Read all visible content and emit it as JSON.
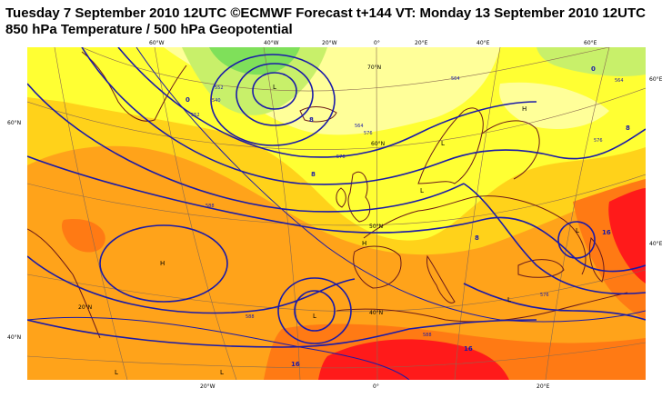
{
  "header": {
    "line1": "Tuesday 7 September 2010 12UTC ©ECMWF Forecast t+144 VT: Monday 13 September 2010 12UTC",
    "line2": "850 hPa Temperature / 500 hPa Geopotential"
  },
  "map": {
    "top_lon_labels": [
      "60°W",
      "40°W",
      "20°W",
      "0°",
      "20°E",
      "40°E",
      "60°E"
    ],
    "bottom_lon_labels": [
      "20°W",
      "0°",
      "20°E"
    ],
    "left_lat_labels": [
      "60°N",
      "40°N"
    ],
    "right_lat_labels": [
      "60°E",
      "40°E"
    ],
    "inner_lat_labels": [
      "70°N",
      "60°N",
      "50°N",
      "40°N",
      "20°N"
    ],
    "pressure_centers": {
      "lows": [
        "L",
        "L",
        "L",
        "L",
        "L",
        "L",
        "L",
        "L"
      ],
      "highs": [
        "H",
        "H",
        "H"
      ]
    },
    "geopotential_labels": [
      "540",
      "552",
      "564",
      "576",
      "588",
      "588",
      "576",
      "564",
      "552",
      "588",
      "576",
      "564",
      "576"
    ],
    "temperature_labels": [
      "0",
      "0",
      "8",
      "8",
      "8",
      "16",
      "16",
      "16",
      "8"
    ],
    "colors": {
      "cold_green": "#7fe05a",
      "pale_green": "#c8f06a",
      "yellow": "#ffff33",
      "light_yellow": "#ffff99",
      "orange_yellow": "#ffd21a",
      "orange": "#ffa31a",
      "dark_orange": "#ff7a14",
      "red": "#ff1a1a",
      "coastline": "#6b1a1a",
      "contour_blue": "#1a1aa8",
      "grid": "#8a6a50"
    }
  }
}
